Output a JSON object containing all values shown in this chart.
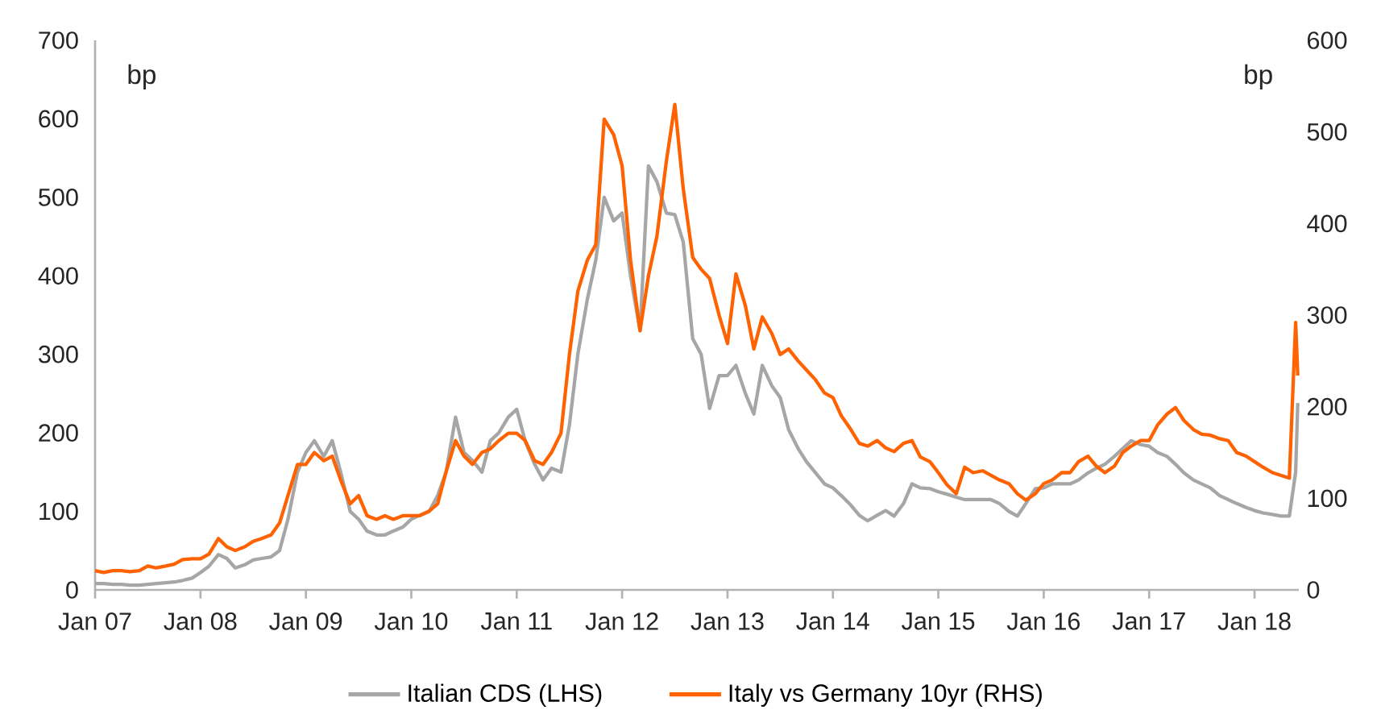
{
  "chart_data": {
    "type": "line",
    "ylabel": "bp",
    "y2label": "bp",
    "legend": "bottom",
    "line_style": "solid",
    "marker": "none",
    "x": [
      "2007-01",
      "2007-02",
      "2007-03",
      "2007-04",
      "2007-05",
      "2007-06",
      "2007-07",
      "2007-08",
      "2007-09",
      "2007-10",
      "2007-11",
      "2007-12",
      "2008-01",
      "2008-02",
      "2008-03",
      "2008-04",
      "2008-05",
      "2008-06",
      "2008-07",
      "2008-08",
      "2008-09",
      "2008-10",
      "2008-11",
      "2008-12",
      "2009-01",
      "2009-02",
      "2009-03",
      "2009-04",
      "2009-05",
      "2009-06",
      "2009-07",
      "2009-08",
      "2009-09",
      "2009-10",
      "2009-11",
      "2009-12",
      "2010-01",
      "2010-02",
      "2010-03",
      "2010-04",
      "2010-05",
      "2010-06",
      "2010-07",
      "2010-08",
      "2010-09",
      "2010-10",
      "2010-11",
      "2010-12",
      "2011-01",
      "2011-02",
      "2011-03",
      "2011-04",
      "2011-05",
      "2011-06",
      "2011-07",
      "2011-08",
      "2011-09",
      "2011-10",
      "2011-11",
      "2011-12",
      "2012-01",
      "2012-02",
      "2012-03",
      "2012-04",
      "2012-05",
      "2012-06",
      "2012-07",
      "2012-08",
      "2012-09",
      "2012-10",
      "2012-11",
      "2012-12",
      "2013-01",
      "2013-02",
      "2013-03",
      "2013-04",
      "2013-05",
      "2013-06",
      "2013-07",
      "2013-08",
      "2013-09",
      "2013-10",
      "2013-11",
      "2013-12",
      "2014-01",
      "2014-02",
      "2014-03",
      "2014-04",
      "2014-05",
      "2014-06",
      "2014-07",
      "2014-08",
      "2014-09",
      "2014-10",
      "2014-11",
      "2014-12",
      "2015-01",
      "2015-02",
      "2015-03",
      "2015-04",
      "2015-05",
      "2015-06",
      "2015-07",
      "2015-08",
      "2015-09",
      "2015-10",
      "2015-11",
      "2015-12",
      "2016-01",
      "2016-02",
      "2016-03",
      "2016-04",
      "2016-05",
      "2016-06",
      "2016-07",
      "2016-08",
      "2016-09",
      "2016-10",
      "2016-11",
      "2016-12",
      "2017-01",
      "2017-02",
      "2017-03",
      "2017-04",
      "2017-05",
      "2017-06",
      "2017-07",
      "2017-08",
      "2017-09",
      "2017-10",
      "2017-11",
      "2017-12",
      "2018-01",
      "2018-02",
      "2018-03",
      "2018-04",
      "2018-05",
      "2018-05-20",
      "2018-05-29"
    ],
    "xlim": [
      "2007-01",
      "2018-06"
    ],
    "xticks": [
      {
        "value": "2007-01",
        "label": "Jan 07"
      },
      {
        "value": "2008-01",
        "label": "Jan 08"
      },
      {
        "value": "2009-01",
        "label": "Jan 09"
      },
      {
        "value": "2010-01",
        "label": "Jan 10"
      },
      {
        "value": "2011-01",
        "label": "Jan 11"
      },
      {
        "value": "2012-01",
        "label": "Jan 12"
      },
      {
        "value": "2013-01",
        "label": "Jan 13"
      },
      {
        "value": "2014-01",
        "label": "Jan 14"
      },
      {
        "value": "2015-01",
        "label": "Jan 15"
      },
      {
        "value": "2016-01",
        "label": "Jan 16"
      },
      {
        "value": "2017-01",
        "label": "Jan 17"
      },
      {
        "value": "2018-01",
        "label": "Jan 18"
      }
    ],
    "ylim": [
      0,
      700
    ],
    "yticks": [
      0,
      100,
      200,
      300,
      400,
      500,
      600,
      700
    ],
    "y2lim": [
      0,
      600
    ],
    "y2ticks": [
      0,
      100,
      200,
      300,
      400,
      500,
      600
    ],
    "series": [
      {
        "name": "Italian CDS (LHS)",
        "color": "#a6a6a6",
        "values": [
          8,
          8,
          7,
          7,
          6,
          6,
          7,
          8,
          9,
          10,
          12,
          15,
          22,
          30,
          45,
          40,
          28,
          32,
          38,
          40,
          42,
          50,
          90,
          150,
          175,
          190,
          170,
          190,
          150,
          100,
          90,
          75,
          70,
          70,
          75,
          80,
          90,
          95,
          100,
          120,
          150,
          220,
          175,
          165,
          150,
          190,
          200,
          220,
          230,
          190,
          160,
          140,
          155,
          150,
          210,
          300,
          370,
          420,
          500,
          470,
          480,
          400,
          330,
          540,
          520,
          480,
          478,
          443,
          320,
          300,
          231,
          273,
          273,
          286,
          250,
          224,
          286,
          260,
          245,
          204,
          180,
          163,
          150,
          135,
          130,
          120,
          108,
          95,
          88,
          95,
          101,
          94,
          110,
          135,
          130,
          129,
          125,
          122,
          118,
          115,
          115,
          115,
          115,
          110,
          100,
          94,
          110,
          129,
          130,
          135,
          135,
          135,
          140,
          149,
          155,
          160,
          170,
          180,
          190,
          185,
          183,
          175,
          170,
          160,
          149,
          140,
          135,
          130,
          120,
          115,
          110,
          105,
          101,
          98,
          96,
          94,
          94,
          150,
          238
        ]
      },
      {
        "name": "Italy vs Germany 10yr (RHS)",
        "color": "#ff6200",
        "axis": "y2",
        "values": [
          21,
          19,
          21,
          21,
          20,
          21,
          26,
          24,
          26,
          28,
          33,
          34,
          34,
          39,
          56,
          47,
          43,
          47,
          53,
          56,
          60,
          73,
          103,
          137,
          137,
          150,
          141,
          146,
          120,
          94,
          103,
          81,
          77,
          81,
          77,
          81,
          81,
          81,
          86,
          94,
          129,
          163,
          146,
          137,
          150,
          154,
          163,
          171,
          171,
          163,
          141,
          137,
          150,
          171,
          257,
          326,
          360,
          377,
          514,
          497,
          463,
          360,
          283,
          343,
          386,
          468,
          530,
          438,
          363,
          350,
          340,
          300,
          269,
          345,
          310,
          263,
          298,
          280,
          257,
          263,
          250,
          240,
          230,
          215,
          210,
          190,
          175,
          160,
          157,
          163,
          155,
          151,
          160,
          163,
          145,
          140,
          128,
          115,
          105,
          134,
          128,
          130,
          125,
          120,
          116,
          105,
          98,
          105,
          116,
          120,
          128,
          128,
          140,
          146,
          135,
          128,
          135,
          150,
          157,
          163,
          163,
          180,
          192,
          199,
          185,
          175,
          170,
          169,
          165,
          163,
          150,
          146,
          140,
          134,
          128,
          125,
          122,
          292,
          234
        ]
      }
    ]
  }
}
